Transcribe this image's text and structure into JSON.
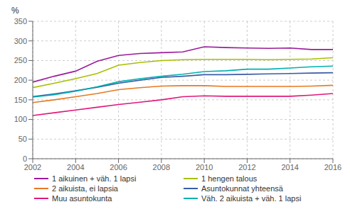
{
  "chart_data": {
    "type": "line",
    "ylabel": "%",
    "x": [
      2002,
      2003,
      2004,
      2005,
      2006,
      2007,
      2008,
      2009,
      2010,
      2011,
      2012,
      2013,
      2014,
      2015,
      2016
    ],
    "series": [
      {
        "name": "Asuntokunnat yhteensä",
        "color": "#3a5ca8",
        "values": [
          158,
          165,
          173,
          182,
          192,
          200,
          207,
          210,
          214,
          214,
          215,
          216,
          217,
          218,
          219
        ]
      },
      {
        "name": "1 hengen talous",
        "color": "#a8c000",
        "values": [
          181,
          192,
          204,
          217,
          238,
          245,
          250,
          252,
          253,
          253,
          253,
          252,
          253,
          254,
          257
        ]
      },
      {
        "name": "1 aikuinen + väh. 1 lapsi",
        "color": "#9b1a9b",
        "values": [
          195,
          210,
          223,
          248,
          263,
          268,
          270,
          272,
          285,
          283,
          282,
          281,
          282,
          278,
          278
        ]
      },
      {
        "name": "Väh. 2 aikuista + väh. 1 lapsi",
        "color": "#00b0b0",
        "values": [
          157,
          163,
          172,
          183,
          196,
          204,
          210,
          215,
          222,
          224,
          228,
          228,
          231,
          234,
          236
        ]
      },
      {
        "name": "2 aikuista, ei lapsia",
        "color": "#e87820",
        "values": [
          143,
          150,
          158,
          166,
          176,
          181,
          185,
          186,
          186,
          184,
          184,
          184,
          184,
          185,
          187
        ]
      },
      {
        "name": "Muu asuntokunta",
        "color": "#e0187a",
        "values": [
          110,
          117,
          124,
          131,
          138,
          144,
          150,
          158,
          160,
          159,
          159,
          159,
          159,
          162,
          166
        ]
      }
    ],
    "xlim": [
      2002,
      2016
    ],
    "xticks": [
      2002,
      2004,
      2006,
      2008,
      2010,
      2012,
      2014,
      2016
    ],
    "ylim": [
      0,
      350
    ],
    "yticks": [
      0,
      50,
      100,
      150,
      200,
      250,
      300,
      350
    ],
    "grid": true,
    "legend": "bottom"
  }
}
